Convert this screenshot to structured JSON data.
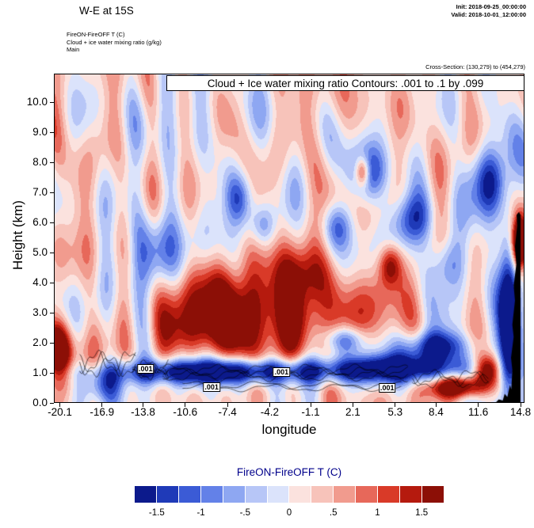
{
  "header": {
    "title": "W-E at 15S",
    "init": "Init: 2018-09-25_00:00:00",
    "valid": "Valid: 2018-10-01_12:00:00",
    "meta_lines": [
      "FireON-FireOFF T   (C)",
      "Cloud + ice water mixing ratio   (g/kg)",
      "Main"
    ],
    "cross_section": "Cross-Section: (130,279) to (454,279)"
  },
  "chart_data": {
    "type": "heatmap",
    "subtype": "filled-contour vertical cross-section of FireON-FireOFF temperature difference with cloud+ice mixing ratio contour overlay and terrain silhouette",
    "title": "Cloud + Ice water mixing ratio Contours: .001 to .1 by .099",
    "xlabel": "longitude",
    "ylabel": "Height (km)",
    "x_ticks": [
      -20.1,
      -16.9,
      -13.8,
      -10.6,
      -7.4,
      -4.2,
      -1.1,
      2.1,
      5.3,
      8.4,
      11.6,
      14.8
    ],
    "y_ticks": [
      0,
      1,
      2,
      3,
      4,
      5,
      6,
      7,
      8,
      9,
      10
    ],
    "xlim": [
      -20.55,
      15.1
    ],
    "ylim": [
      0,
      10.9
    ],
    "grid": false,
    "colorbar": {
      "title": "FireON-FireOFF T  (C)",
      "title_color": "#00008b",
      "levels_min": -1.75,
      "levels_step": 0.25,
      "tick_labels": [
        "-1.5",
        "-1",
        "-.5",
        "0",
        ".5",
        "1",
        "1.5"
      ],
      "colors": [
        "#0c1a8c",
        "#1f3ab8",
        "#3b5bd6",
        "#6381e8",
        "#8ea7f2",
        "#b7c6f7",
        "#dbe3fb",
        "#fbe2de",
        "#f7c3ba",
        "#f19b8e",
        "#e7685a",
        "#d93a28",
        "#b51a0e",
        "#8c0f06"
      ]
    },
    "field_model": {
      "base": {
        "offset": 0.18,
        "a": 0.15,
        "fx": 0.25,
        "p": 1.0
      },
      "noise_terms": [
        {
          "a": 0.3,
          "fx": 1.7,
          "fy": 0.6,
          "p": 0.0,
          "wa": 2.0,
          "wfx": 0.35,
          "wfy": -0.2
        },
        {
          "a": 0.25,
          "fx": 0.9,
          "fy": -1.1,
          "p": 1.0,
          "wa": 1.5,
          "wfx": 0.5,
          "wfy": 0.3
        },
        {
          "a": 0.18,
          "fx": 2.6,
          "fy": 0.25,
          "p": 2.2,
          "wa": 0,
          "wfx": 0,
          "wfy": 0
        },
        {
          "a": 0.2,
          "fx": 0.45,
          "fy": 1.9,
          "p": 0.0,
          "wa": 1.2,
          "wfx": 0.9,
          "wfy": 0
        }
      ],
      "features": [
        {
          "cx": -5.5,
          "cy": 3.1,
          "rx": 6.5,
          "ry": 1.35,
          "amp": 1.9
        },
        {
          "cx": -9.0,
          "cy": 2.2,
          "rx": 3.5,
          "ry": 0.9,
          "amp": 1.1
        },
        {
          "cx": -2.0,
          "cy": 4.3,
          "rx": 2.2,
          "ry": 0.9,
          "amp": 0.9
        },
        {
          "cx": -20.3,
          "cy": 1.8,
          "rx": 1.1,
          "ry": 0.9,
          "amp": 2.2
        },
        {
          "cx": -8.0,
          "cy": 1.05,
          "rx": 9.0,
          "ry": 0.42,
          "amp": -2.4
        },
        {
          "cx": 5.5,
          "cy": 1.15,
          "rx": 6.0,
          "ry": 0.5,
          "amp": -2.0
        },
        {
          "cx": 10.0,
          "cy": 0.55,
          "rx": 2.3,
          "ry": 0.38,
          "amp": 2.4
        },
        {
          "cx": 12.3,
          "cy": 1.1,
          "rx": 1.0,
          "ry": 0.5,
          "amp": 2.2
        },
        {
          "cx": 3.3,
          "cy": 7.6,
          "rx": 1.6,
          "ry": 1.0,
          "amp": -1.8
        },
        {
          "cx": 2.8,
          "cy": 7.7,
          "rx": 0.55,
          "ry": 0.5,
          "amp": 1.9
        },
        {
          "cx": 6.6,
          "cy": 6.1,
          "rx": 1.4,
          "ry": 0.9,
          "amp": -1.6
        },
        {
          "cx": 1.0,
          "cy": 5.9,
          "rx": 1.2,
          "ry": 0.8,
          "amp": -1.3
        },
        {
          "cx": -4.8,
          "cy": 5.9,
          "rx": 1.0,
          "ry": 0.7,
          "amp": -1.0
        },
        {
          "cx": 12.6,
          "cy": 7.4,
          "rx": 1.3,
          "ry": 1.2,
          "amp": -1.6
        },
        {
          "cx": 9.3,
          "cy": 4.6,
          "rx": 1.3,
          "ry": 0.9,
          "amp": -1.2
        },
        {
          "cx": 4.9,
          "cy": 4.6,
          "rx": 0.9,
          "ry": 0.7,
          "amp": 1.6
        },
        {
          "cx": 13.9,
          "cy": 2.5,
          "rx": 0.75,
          "ry": 2.8,
          "amp": -2.6
        },
        {
          "cx": 14.7,
          "cy": 5.3,
          "rx": 0.6,
          "ry": 0.9,
          "amp": 3.2
        },
        {
          "cx": -17.0,
          "cy": 0.55,
          "rx": 1.6,
          "ry": 0.5,
          "amp": -1.1
        },
        {
          "cx": -6.5,
          "cy": 6.8,
          "rx": 1.0,
          "ry": 0.8,
          "amp": -0.9
        },
        {
          "cx": -12.6,
          "cy": 5.2,
          "rx": 1.2,
          "ry": 1.3,
          "amp": -0.8
        },
        {
          "cx": 8.4,
          "cy": 1.9,
          "rx": 2.4,
          "ry": 0.5,
          "amp": -1.8
        },
        {
          "cx": 1.5,
          "cy": 2.1,
          "rx": 1.5,
          "ry": 0.45,
          "amp": -1.5
        },
        {
          "cx": -14.5,
          "cy": 4.5,
          "rx": 1.5,
          "ry": 1.5,
          "amp": -0.7
        }
      ]
    },
    "contour_overlay": {
      "contour_values": ".001 to .1 by .099",
      "squiggles": [
        {
          "lon0": -18.6,
          "lon1": -14.3,
          "h": 1.3,
          "amp": 0.3,
          "lines": 3,
          "wav": 2.6
        },
        {
          "lon0": -14.6,
          "lon1": -11.8,
          "h": 1.1,
          "amp": 0.18,
          "lines": 4,
          "wav": 3.4
        },
        {
          "lon0": -12.3,
          "lon1": 6.3,
          "h": 1.0,
          "amp": 0.12,
          "lines": 4,
          "wav": 1.8
        },
        {
          "lon0": -10.8,
          "lon1": 5.8,
          "h": 0.55,
          "amp": 0.1,
          "lines": 2,
          "wav": 1.2
        },
        {
          "lon0": 6.6,
          "lon1": 12.4,
          "h": 0.8,
          "amp": 0.18,
          "lines": 3,
          "wav": 2.2
        }
      ],
      "labels": [
        {
          "lon": -13.6,
          "h": 1.12,
          "text": ".001"
        },
        {
          "lon": -8.6,
          "h": 0.52,
          "text": ".001"
        },
        {
          "lon": -3.3,
          "h": 1.02,
          "text": ".001"
        },
        {
          "lon": 4.7,
          "h": 0.5,
          "text": ".001"
        }
      ]
    },
    "terrain": [
      [
        12.9,
        0
      ],
      [
        13.15,
        0.12
      ],
      [
        13.45,
        0.08
      ],
      [
        13.6,
        0.3
      ],
      [
        13.8,
        0.2
      ],
      [
        14.0,
        0.6
      ],
      [
        14.1,
        0.45
      ],
      [
        14.18,
        1.1
      ],
      [
        14.08,
        1.5
      ],
      [
        14.28,
        2.2
      ],
      [
        14.18,
        2.6
      ],
      [
        14.38,
        3.4
      ],
      [
        14.28,
        3.9
      ],
      [
        14.48,
        4.6
      ],
      [
        14.38,
        5.2
      ],
      [
        14.55,
        5.9
      ],
      [
        14.5,
        6.25
      ],
      [
        14.68,
        6.35
      ],
      [
        14.8,
        6.25
      ],
      [
        14.8,
        0
      ]
    ]
  }
}
